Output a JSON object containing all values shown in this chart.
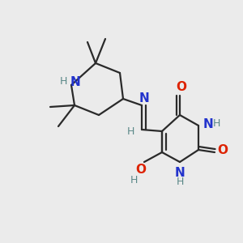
{
  "bg_color": "#ebebeb",
  "bond_color": "#2a2a2a",
  "N_color": "#2233cc",
  "O_color": "#dd2200",
  "NH_color": "#5a8888",
  "figsize": [
    3.0,
    3.0
  ],
  "dpi": 100,
  "xlim": [
    0,
    300
  ],
  "ylim": [
    0,
    300
  ]
}
